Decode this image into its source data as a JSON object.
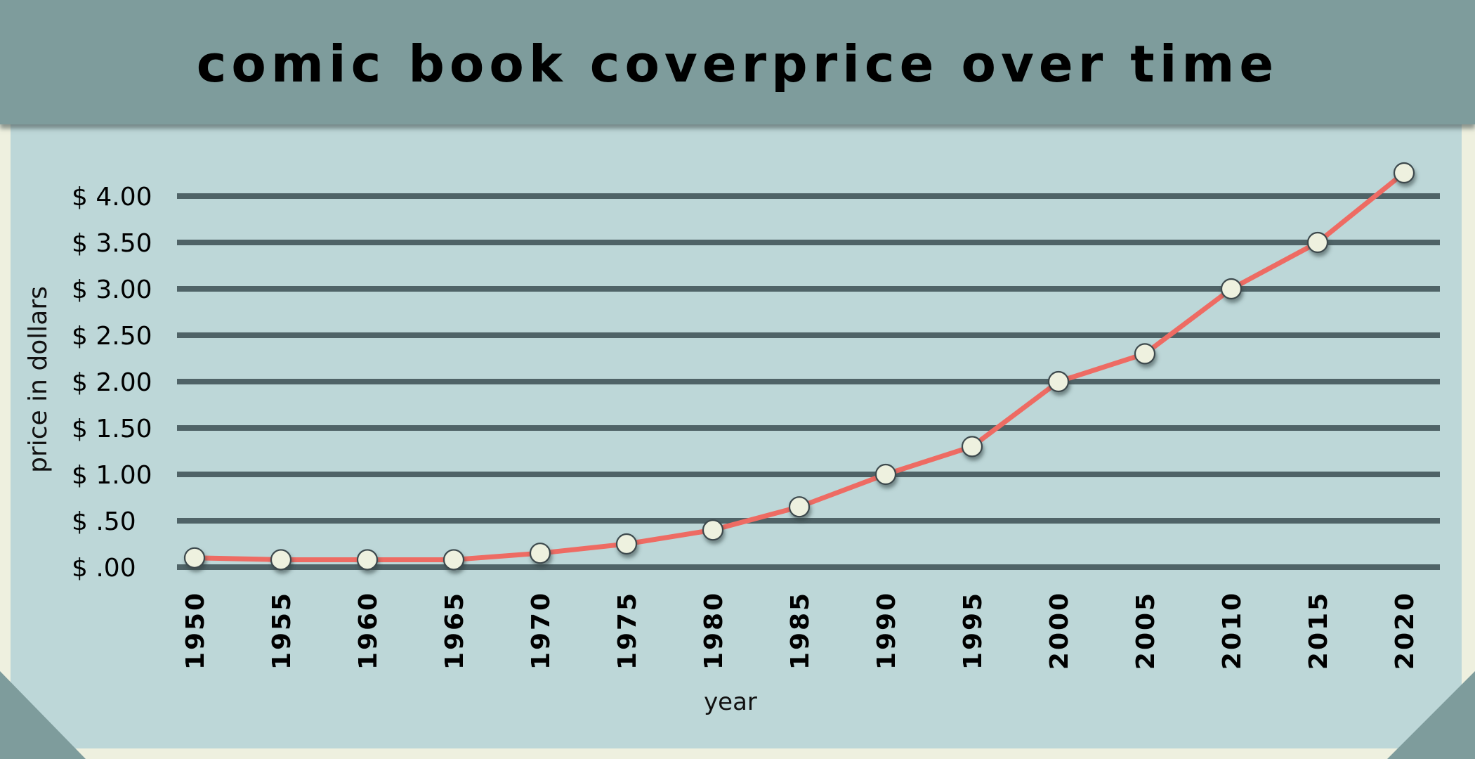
{
  "header": {
    "title": "comic book coverprice over time"
  },
  "colors": {
    "background": "#eef0df",
    "panel": "#bdd7d8",
    "header": "#7e9c9c",
    "gridline": "#4f6367",
    "line": "#ee6b63",
    "marker_fill": "#eef1df",
    "marker_stroke": "#3d4a4d"
  },
  "chart_data": {
    "type": "line",
    "title": "comic book coverprice over time",
    "xlabel": "year",
    "ylabel": "price in dollars",
    "x": [
      1950,
      1955,
      1960,
      1965,
      1970,
      1975,
      1980,
      1985,
      1990,
      1995,
      2000,
      2005,
      2010,
      2015,
      2020
    ],
    "categories": [
      "1950",
      "1955",
      "1960",
      "1965",
      "1970",
      "1975",
      "1980",
      "1985",
      "1990",
      "1995",
      "2000",
      "2005",
      "2010",
      "2015",
      "2020"
    ],
    "series": [
      {
        "name": "cover price",
        "values": [
          0.1,
          0.08,
          0.08,
          0.08,
          0.15,
          0.25,
          0.4,
          0.65,
          1.0,
          1.3,
          2.0,
          2.3,
          3.0,
          3.5,
          4.25
        ]
      }
    ],
    "ylim": [
      0,
      4.0
    ],
    "yticks": [
      0,
      0.5,
      1.0,
      1.5,
      2.0,
      2.5,
      3.0,
      3.5,
      4.0
    ],
    "ytick_labels": [
      "$ .00",
      "$ .50",
      "$ 1.00",
      "$ 1.50",
      "$ 2.00",
      "$ 2.50",
      "$ 3.00",
      "$ 3.50",
      "$ 4.00"
    ],
    "grid": true,
    "legend": null
  }
}
